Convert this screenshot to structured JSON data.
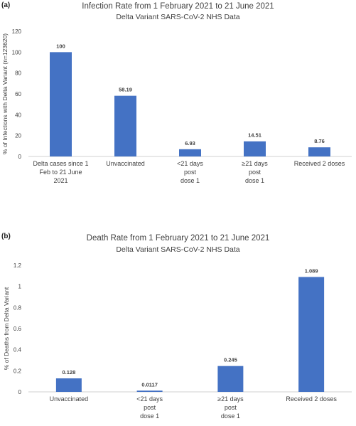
{
  "chart_data": [
    {
      "type": "bar",
      "panel_label": "(a)",
      "title": "Infection Rate from 1 February 2021 to 21 June 2021",
      "subtitle": "Delta Variant SARS-CoV-2 NHS Data",
      "ylabel": "% of Infections with Delta Variant (n=123620)",
      "xlabel": "",
      "categories": [
        [
          "Delta cases since 1",
          "Feb to 21 June",
          "2021"
        ],
        [
          "Unvaccinated"
        ],
        [
          "<21 days",
          "post",
          "dose 1"
        ],
        [
          "≥21 days",
          "post",
          "dose 1"
        ],
        [
          "Received 2 doses"
        ]
      ],
      "values": [
        100,
        58.19,
        6.93,
        14.51,
        8.76
      ],
      "data_labels": [
        "100",
        "58.19",
        "6.93",
        "14.51",
        "8.76"
      ],
      "ylim": [
        0,
        120
      ],
      "yticks": [
        "0",
        "20",
        "40",
        "60",
        "80",
        "100",
        "120"
      ],
      "ytick_values": [
        0,
        20,
        40,
        60,
        80,
        100,
        120
      ],
      "grid": false,
      "bar_color": "#4472C4"
    },
    {
      "type": "bar",
      "panel_label": "(b)",
      "title": "Death Rate from 1 February 2021 to 21 June 2021",
      "subtitle": "Delta Variant SARS-CoV-2 NHS Data",
      "ylabel": "% of Deaths from Delta Variant",
      "xlabel": "",
      "categories": [
        [
          "Unvaccinated"
        ],
        [
          "<21 days",
          "post",
          "dose 1"
        ],
        [
          "≥21 days",
          "post",
          "dose 1"
        ],
        [
          "Received 2 doses"
        ]
      ],
      "values": [
        0.128,
        0.0117,
        0.245,
        1.089
      ],
      "data_labels": [
        "0.128",
        "0.0117",
        "0.245",
        "1.089"
      ],
      "ylim": [
        0,
        1.2
      ],
      "yticks": [
        "0",
        "0.2",
        "0.4",
        "0.6",
        "0.8",
        "1",
        "1.2"
      ],
      "ytick_values": [
        0,
        0.2,
        0.4,
        0.6,
        0.8,
        1,
        1.2
      ],
      "grid": false,
      "bar_color": "#4472C4"
    }
  ]
}
